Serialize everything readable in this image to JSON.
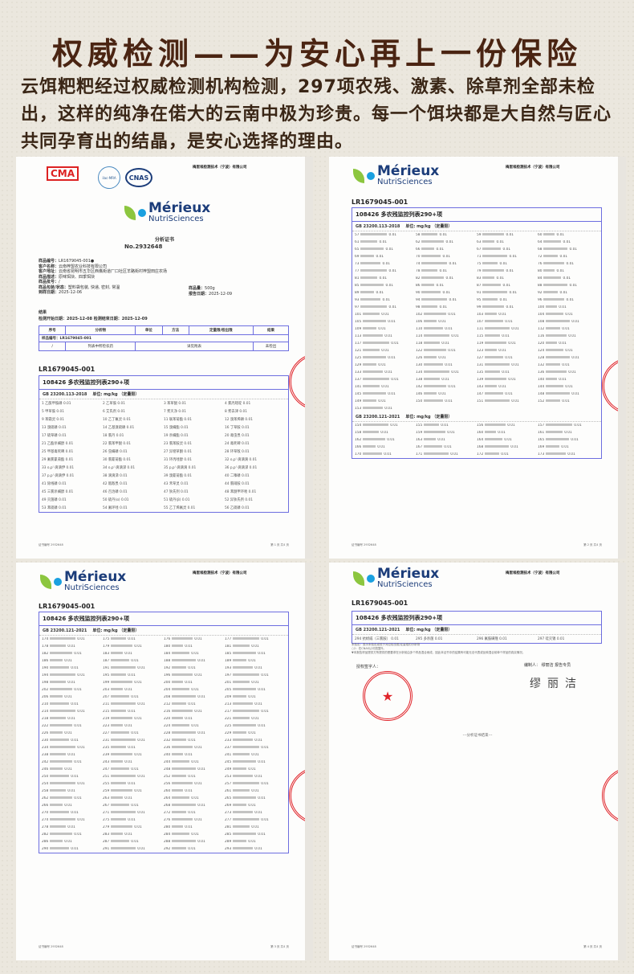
{
  "header": {
    "title": "权威检测——为安心再上一份保险",
    "intro": "云饵粑粑经过权威检测机构检测，297项农残、激素、除草剂全部未检出，这样的纯净在偌大的云南中极为珍贵。每一个饵块都是大自然与匠心共同孕育出的结晶，是安心选择的理由。"
  },
  "brand": {
    "name": "Mérieux",
    "sub": "NutriSciences",
    "company": "梅里埃检测技术（宁波）有限公司",
    "colors": {
      "blue": "#1c3d7a",
      "dot": "#1aa0e0",
      "leaf": "#8cc63f",
      "table": "#6d6ee0",
      "stamp": "#e0242a"
    }
  },
  "cert": {
    "cma": "CMA",
    "ilac": "ilac-MRA",
    "cnas": "CNAS",
    "heading": "分析证书",
    "no": "No.2932648",
    "fields": [
      {
        "label": "样品编号：",
        "value": "LR1679045-001●"
      },
      {
        "label": "客户名称：",
        "value": "云南梓盟农业科技有限公司"
      },
      {
        "label": "客户地址：",
        "value": "云南省昆明市五华区西翥街道厂口社区羊路街村梓盟田庄农场"
      },
      {
        "label": "样品描述：",
        "value": "原味饵块、四季饵块"
      },
      {
        "label": "样品批号：",
        "value": "/"
      },
      {
        "label": "样品包装/状态：",
        "value": "塑料袋包装, 快递, 密封, 常温"
      },
      {
        "label": "到样日期：",
        "value": "2025-12-06"
      }
    ],
    "qty_label": "样品量：",
    "qty": "500g",
    "report_label": "报告日期：",
    "report_date": "2025-12-09",
    "result": "结果",
    "dates": "检测开始日期：2025-12-08    检测结束日期：2025-12-09",
    "cols": [
      "序号",
      "分析物",
      "单位",
      "方法",
      "定量限/检出限",
      "结果"
    ],
    "sample_row": "样品编号：LR1679045-001",
    "row": [
      "/",
      "列表中所检农药",
      "详见附表",
      "未检出"
    ]
  },
  "sample_id": "LR1679045-001",
  "table_title": "108426 多农残监控列表290+项",
  "unit": "单位: mg/kg （定量限）",
  "std1": "GB 23200.113-2018",
  "std2": "GB 23200.121-2021",
  "doc1_items": [
    "1 乙酰甲胺磷 0.01",
    "2 乙草胺 0.01",
    "3 苯草醚 0.01",
    "4 氯丙嘧啶 0.01",
    "5 甲草胺 0.01",
    "6 艾氏剂 0.01",
    "7 莠灭净 0.01",
    "8 莠去津 0.01",
    "9 苯霜灵 0.01",
    "10 乙丁氟灵 0.01",
    "11 联苯菊酯 0.01",
    "12 溴苯烯磷 0.01",
    "13 溴硫磷 0.01",
    "14 乙基溴硫磷 0.01",
    "15 溴螨酯 0.01",
    "16 丁草胺 0.01",
    "17 硫草磷 0.01",
    "18 氯丹 0.01",
    "19 杀螨酯 0.01",
    "20 毒虫畏 0.01",
    "21 乙酯杀螨醇 0.01",
    "22 氯苯甲醚 0.01",
    "23 氯苯胺灵 0.01",
    "24 毒死蜱 0.01",
    "25 甲基毒死蜱 0.01",
    "26 虫螨磷 0.01",
    "27 异噁草酮 0.01",
    "28 环草敌 0.01",
    "29 氟氯氰菊酯 0.01",
    "30 氯氰菊酯 0.01",
    "31 环丙唑醇 0.01",
    "32 o,p'-滴滴滴 0.01",
    "33 o,p'-滴滴伊 0.01",
    "34 o,p'-滴滴涕 0.01",
    "35 p,p'-滴滴滴 0.01",
    "36 p,p'-滴滴涕 0.01",
    "37 p,p'-滴滴伊 0.01",
    "38 滴滴涕 0.01",
    "39 溴氰菊酯 0.01",
    "40 二嗪磷 0.01",
    "41 除线磷 0.01",
    "42 敌敌畏 0.01",
    "43 禾草灵 0.01",
    "44 氯硝胺 0.01",
    "45 三氯杀螨醇 0.01",
    "46 百治磷 0.01",
    "47 狄氏剂 0.01",
    "48 苯醚甲环唑 0.01",
    "49 灭菌磷 0.01",
    "50 硫丹(α) 0.01",
    "51 硫丹(β) 0.01",
    "52 异狄氏剂 0.01",
    "53 苯硫磷 0.01",
    "54 氟环唑 0.01",
    "55 乙丁烯氟灵 0.01",
    "56 乙硫磷 0.01"
  ],
  "doc2_sections": [
    {
      "std": "GB 23200.113-2018",
      "first": 57,
      "last": 153
    },
    {
      "std": "GB 23200.121-2021",
      "first": 154,
      "last": 173
    }
  ],
  "doc3_sections": [
    {
      "std": "GB 23200.121-2021",
      "first": 174,
      "last": 293
    }
  ],
  "doc4_items": [
    "294 抗蚜威（三氯胺） 0.01",
    "295 多杀菌 0.01",
    "296 氟胺磺隆 0.01",
    "297 硅灭锡 0.01"
  ],
  "doc4_notes": [
    "未检出：表示未检出或低于对应检出限/定量限的分析物",
    "○2：在CNAS认可范围外。",
    "▼本报告样品提供方所提供的是要求在分析前由多个样品混合而成，因此本证书中的结果有可能无法代表或反映混合前单个样品的真实情况。"
  ],
  "signer_label": "授权签字人：",
  "editor": "编制人： 缪丽洁 报告专员",
  "signature": "缪丽洁",
  "end_mark": "---分析证书结束---",
  "pages": [
    "第 1 页 共4 页",
    "第 2 页 共4 页",
    "第 3 页 共4 页",
    "第 4 页 共4 页"
  ],
  "cert_no_footer": "证书编号 2932648"
}
